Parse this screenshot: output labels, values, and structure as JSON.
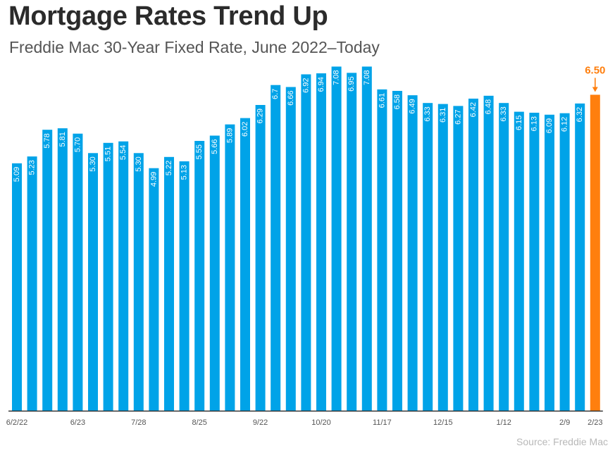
{
  "title": "Mortgage Rates Trend Up",
  "subtitle": "Freddie Mac 30-Year Fixed Rate, June 2022–Today",
  "source": "Source: Freddie Mac",
  "colors": {
    "bar": "#00a3e8",
    "highlight": "#ff7f0e",
    "axis": "#333333",
    "text": "#555555"
  },
  "chart_data": {
    "type": "bar",
    "title": "Mortgage Rates Trend Up",
    "subtitle": "Freddie Mac 30-Year Fixed Rate, June 2022–Today",
    "xlabel": "",
    "ylabel": "",
    "ylim": [
      0,
      7.5
    ],
    "grid": false,
    "legend": "none",
    "values": [
      5.09,
      5.23,
      5.78,
      5.81,
      5.7,
      5.3,
      5.51,
      5.54,
      5.3,
      4.99,
      5.22,
      5.13,
      5.55,
      5.66,
      5.89,
      6.02,
      6.29,
      6.7,
      6.66,
      6.92,
      6.94,
      7.08,
      6.95,
      7.08,
      6.61,
      6.58,
      6.49,
      6.33,
      6.31,
      6.27,
      6.42,
      6.48,
      6.33,
      6.15,
      6.13,
      6.09,
      6.12,
      6.32,
      6.5
    ],
    "value_labels": [
      "5.09",
      "5.23",
      "5.78",
      "5.81",
      "5.70",
      "5.30",
      "5.51",
      "5.54",
      "5.30",
      "4.99",
      "5.22",
      "5.13",
      "5.55",
      "5.66",
      "5.89",
      "6.02",
      "6.29",
      "6.7",
      "6.66",
      "6.92",
      "6.94",
      "7.08",
      "6.95",
      "7.08",
      "6.61",
      "6.58",
      "6.49",
      "6.33",
      "6.31",
      "6.27",
      "6.42",
      "6.48",
      "6.33",
      "6.15",
      "6.13",
      "6.09",
      "6.12",
      "6.32",
      "6.50"
    ],
    "x_ticks": [
      {
        "index": 0,
        "label": "6/2/22"
      },
      {
        "index": 4,
        "label": "6/23"
      },
      {
        "index": 8,
        "label": "7/28"
      },
      {
        "index": 12,
        "label": "8/25"
      },
      {
        "index": 16,
        "label": "9/22"
      },
      {
        "index": 20,
        "label": "10/20"
      },
      {
        "index": 24,
        "label": "11/17"
      },
      {
        "index": 28,
        "label": "12/15"
      },
      {
        "index": 32,
        "label": "1/12"
      },
      {
        "index": 36,
        "label": "2/9"
      },
      {
        "index": 38,
        "label": "2/23"
      }
    ],
    "highlight_index": 38,
    "highlight_label": "6.50"
  }
}
